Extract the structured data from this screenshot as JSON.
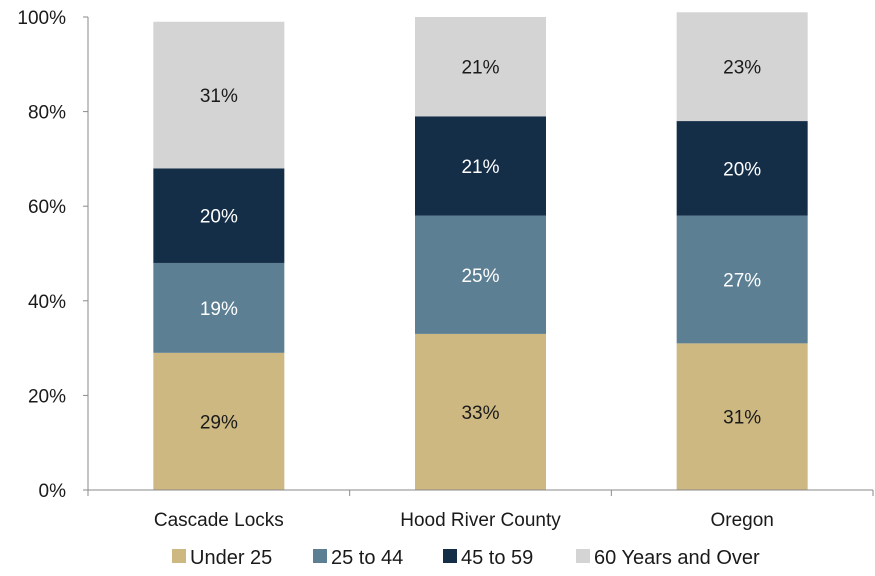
{
  "chart_data": {
    "type": "bar",
    "stacked": true,
    "categories": [
      "Cascade Locks",
      "Hood River County",
      "Oregon"
    ],
    "series": [
      {
        "name": "Under 25",
        "values": [
          29,
          33,
          31
        ],
        "labels": [
          "29%",
          "33%",
          "31%"
        ],
        "color": "#CDB882",
        "label_color": "#1a1a1a"
      },
      {
        "name": "25 to 44",
        "values": [
          19,
          25,
          27
        ],
        "labels": [
          "19%",
          "25%",
          "27%"
        ],
        "color": "#5C7F93",
        "label_color": "#ffffff"
      },
      {
        "name": "45 to 59",
        "values": [
          20,
          21,
          20
        ],
        "labels": [
          "20%",
          "21%",
          "20%"
        ],
        "color": "#152E48",
        "label_color": "#ffffff"
      },
      {
        "name": "60 Years and Over",
        "values": [
          31,
          21,
          23
        ],
        "labels": [
          "31%",
          "21%",
          "23%"
        ],
        "color": "#D4D4D4",
        "label_color": "#1a1a1a"
      }
    ],
    "y_ticks": [
      "0%",
      "20%",
      "40%",
      "60%",
      "80%",
      "100%"
    ],
    "ylim": [
      0,
      100
    ],
    "grid": false,
    "legend_position": "bottom",
    "title": "",
    "xlabel": "",
    "ylabel": ""
  }
}
